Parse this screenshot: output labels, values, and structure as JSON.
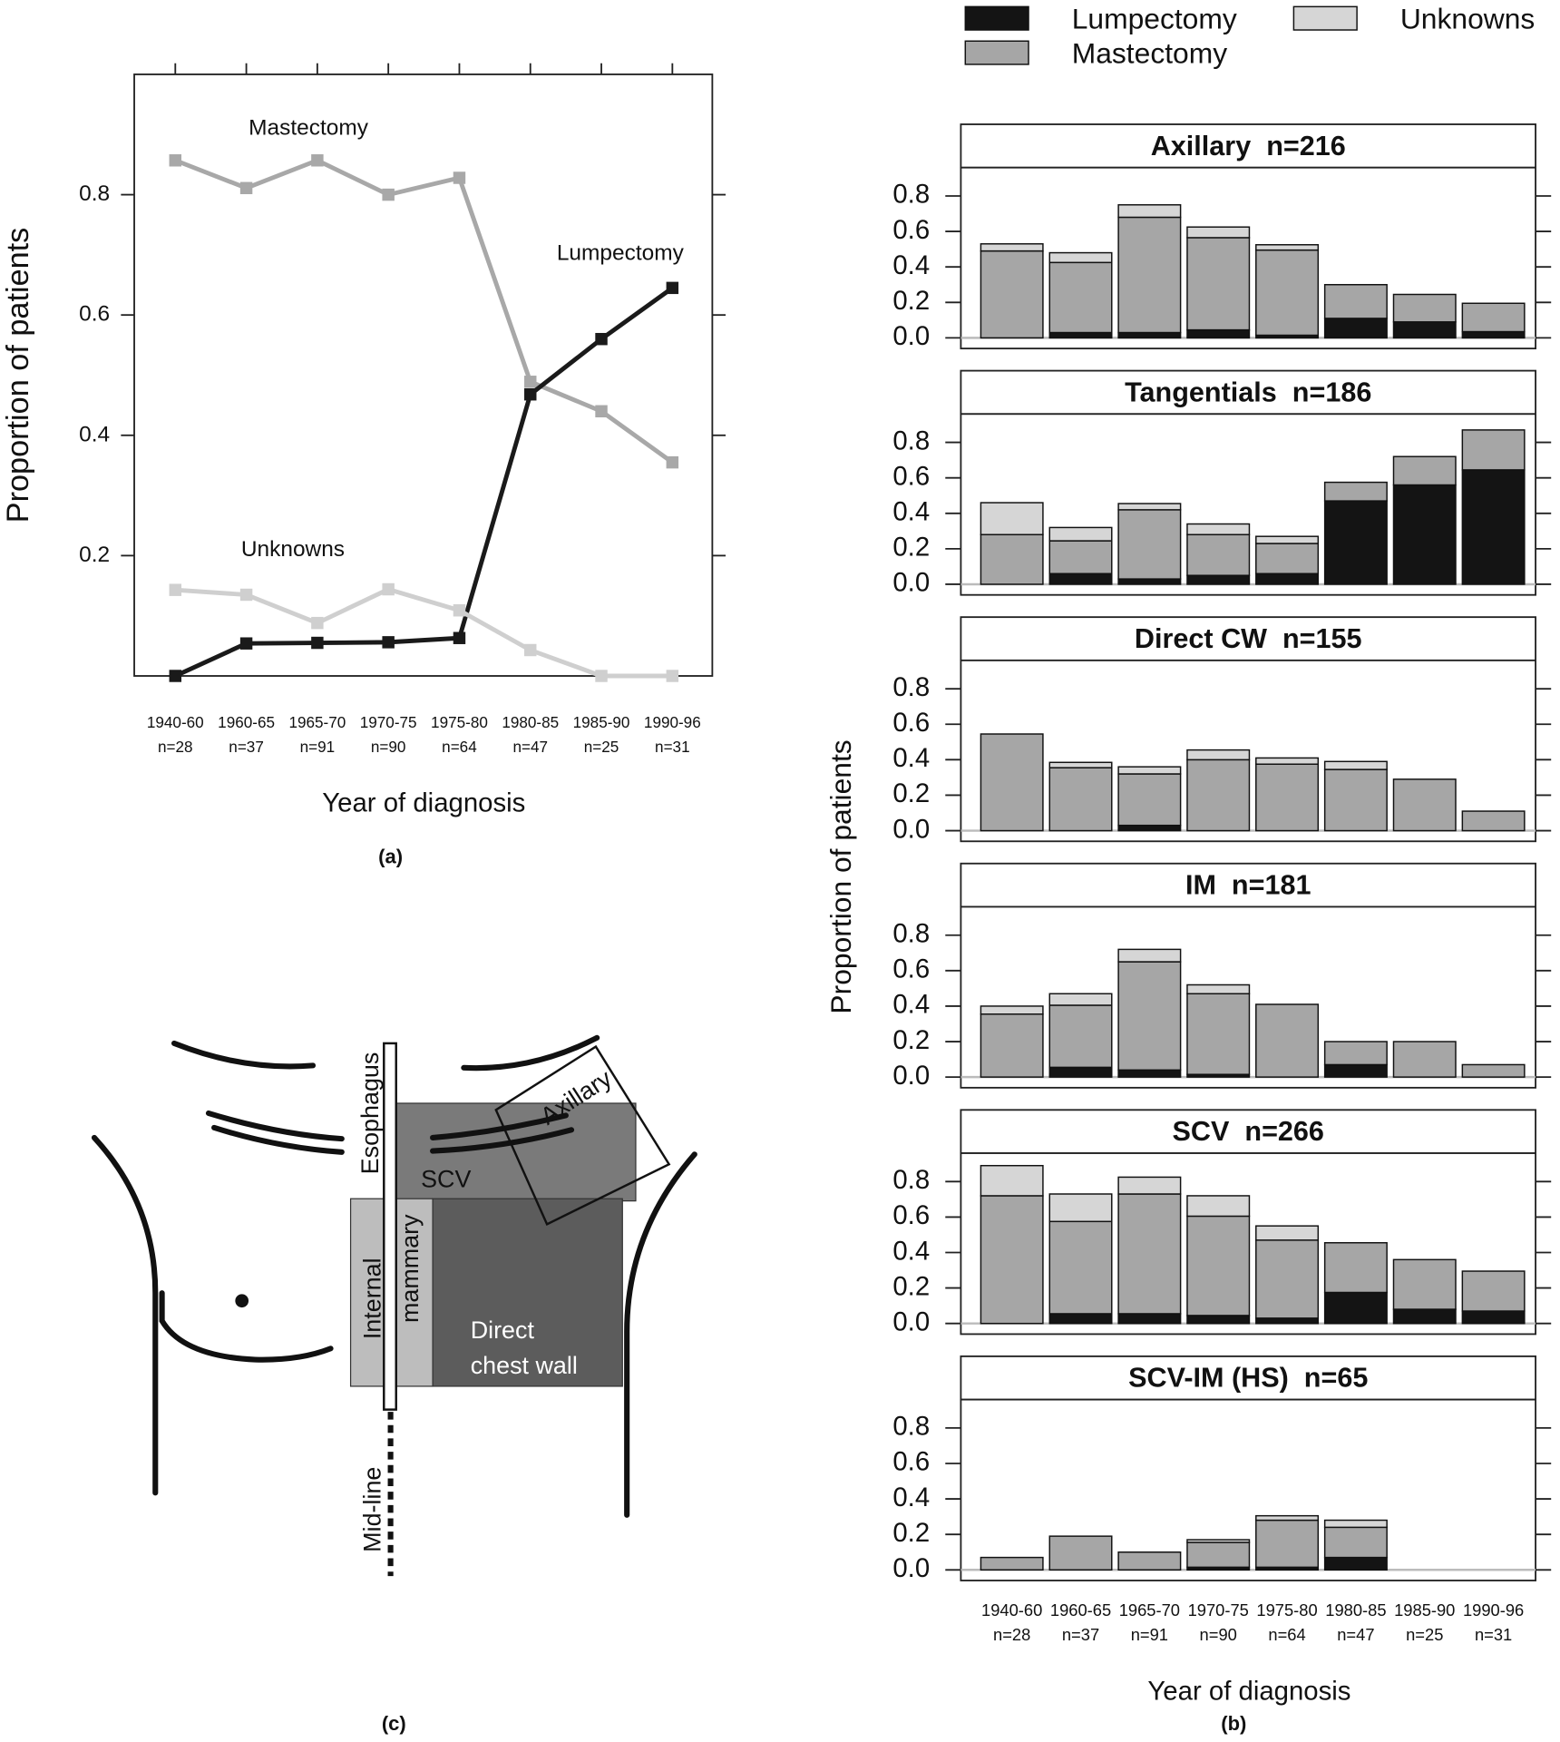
{
  "chart_data": [
    {
      "type": "line",
      "y_label": "Proportion of patients",
      "x_label": "Year of diagnosis",
      "caption": "(a)",
      "categories": [
        "1940-60",
        "1960-65",
        "1965-70",
        "1970-75",
        "1975-80",
        "1980-85",
        "1985-90",
        "1990-96"
      ],
      "category_counts": [
        "n=28",
        "n=37",
        "n=91",
        "n=90",
        "n=64",
        "n=47",
        "n=25",
        "n=31"
      ],
      "ylim": [
        0,
        1
      ],
      "yticks": [
        0.2,
        0.4,
        0.6,
        0.8
      ],
      "series": [
        {
          "name": "Mastectomy",
          "color": "#a8a8a8",
          "values": [
            0.857,
            0.811,
            0.857,
            0.8,
            0.828,
            0.489,
            0.44,
            0.355
          ]
        },
        {
          "name": "Lumpectomy",
          "color": "#1a1a1a",
          "values": [
            0,
            0.054,
            0.055,
            0.056,
            0.063,
            0.468,
            0.56,
            0.645
          ]
        },
        {
          "name": "Unknowns",
          "color": "#cfcfcf",
          "values": [
            0.143,
            0.135,
            0.088,
            0.144,
            0.109,
            0.043,
            0,
            0
          ]
        }
      ]
    },
    {
      "type": "bar",
      "stacked": true,
      "legend": "top",
      "y_label": "Proportion of patients",
      "x_label": "Year of diagnosis",
      "caption": "(b)",
      "categories": [
        "1940-60",
        "1960-65",
        "1965-70",
        "1970-75",
        "1975-80",
        "1980-85",
        "1985-90",
        "1990-96"
      ],
      "category_counts": [
        "n=28",
        "n=37",
        "n=91",
        "n=90",
        "n=64",
        "n=47",
        "n=25",
        "n=31"
      ],
      "ylim": [
        -0.06,
        0.96
      ],
      "yticks": [
        {
          "value": 0,
          "label": "0.0"
        },
        0.2,
        0.4,
        0.6,
        0.8
      ],
      "reference_line": 0,
      "series": [
        {
          "name": "Lumpectomy",
          "color": "#141414"
        },
        {
          "name": "Mastectomy",
          "color": "#a6a6a6"
        },
        {
          "name": "Unknowns",
          "color": "#d6d6d6"
        }
      ],
      "panels": [
        {
          "title": "Axillary  n=216",
          "series": [
            {
              "values": [
                0,
                0.03,
                0.03,
                0.045,
                0.015,
                0.11,
                0.09,
                0.035
              ]
            },
            {
              "values": [
                0.49,
                0.395,
                0.65,
                0.52,
                0.48,
                0.19,
                0.155,
                0.16
              ]
            },
            {
              "values": [
                0.04,
                0.055,
                0.07,
                0.06,
                0.03,
                0,
                0,
                0
              ]
            }
          ]
        },
        {
          "title": "Tangentials  n=186",
          "series": [
            {
              "values": [
                0,
                0.06,
                0.03,
                0.05,
                0.06,
                0.47,
                0.56,
                0.645
              ]
            },
            {
              "values": [
                0.28,
                0.185,
                0.39,
                0.23,
                0.17,
                0.105,
                0.16,
                0.225
              ]
            },
            {
              "values": [
                0.18,
                0.075,
                0.035,
                0.06,
                0.04,
                0,
                0,
                0
              ]
            }
          ]
        },
        {
          "title": "Direct CW  n=155",
          "series": [
            {
              "values": [
                0,
                0,
                0.03,
                0,
                0,
                0,
                0,
                0
              ]
            },
            {
              "values": [
                0.545,
                0.355,
                0.29,
                0.4,
                0.375,
                0.345,
                0.29,
                0.11
              ]
            },
            {
              "values": [
                0,
                0.03,
                0.04,
                0.055,
                0.035,
                0.045,
                0,
                0
              ]
            }
          ]
        },
        {
          "title": "IM  n=181",
          "series": [
            {
              "values": [
                0,
                0.055,
                0.04,
                0.015,
                0,
                0.07,
                0,
                0
              ]
            },
            {
              "values": [
                0.355,
                0.35,
                0.61,
                0.455,
                0.41,
                0.13,
                0.2,
                0.07
              ]
            },
            {
              "values": [
                0.045,
                0.065,
                0.07,
                0.05,
                0,
                0,
                0,
                0
              ]
            }
          ]
        },
        {
          "title": "SCV  n=266",
          "series": [
            {
              "values": [
                0,
                0.055,
                0.055,
                0.045,
                0.03,
                0.175,
                0.08,
                0.07
              ]
            },
            {
              "values": [
                0.72,
                0.52,
                0.675,
                0.56,
                0.44,
                0.28,
                0.28,
                0.225
              ]
            },
            {
              "values": [
                0.17,
                0.155,
                0.095,
                0.115,
                0.08,
                0,
                0,
                0
              ]
            }
          ]
        },
        {
          "title": "SCV-IM (HS)  n=65",
          "series": [
            {
              "values": [
                0,
                0,
                0,
                0.015,
                0.015,
                0.07,
                0,
                0
              ]
            },
            {
              "values": [
                0.07,
                0.19,
                0.1,
                0.14,
                0.265,
                0.17,
                0,
                0
              ]
            },
            {
              "values": [
                0,
                0,
                0,
                0.015,
                0.025,
                0.04,
                0,
                0
              ]
            }
          ]
        }
      ]
    }
  ],
  "diagram": {
    "caption": "(c)",
    "labels": [
      "Esophagus",
      "Axillary",
      "SCV",
      "Internal",
      "mammary",
      "Direct",
      "chest wall",
      "Mid-line"
    ]
  }
}
